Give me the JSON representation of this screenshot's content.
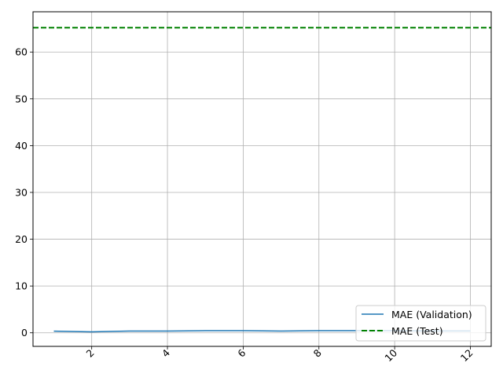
{
  "chart_data": {
    "type": "line",
    "title": "",
    "xlabel": "",
    "ylabel": "",
    "xlim": [
      0.45,
      12.55
    ],
    "ylim": [
      -2.9,
      68.6
    ],
    "x_ticks": [
      2,
      4,
      6,
      8,
      10,
      12
    ],
    "y_ticks": [
      0,
      10,
      20,
      30,
      40,
      50,
      60
    ],
    "x_tick_rotation": 45,
    "grid": true,
    "legend_position": "lower-right",
    "series": [
      {
        "name": "MAE (Validation)",
        "color": "#1f77b4",
        "style": "solid",
        "x": [
          1,
          2,
          3,
          4,
          5,
          6,
          7,
          8,
          9,
          10,
          11,
          12
        ],
        "y": [
          0.35,
          0.2,
          0.38,
          0.38,
          0.45,
          0.45,
          0.38,
          0.45,
          0.45,
          0.45,
          0.4,
          0.4
        ]
      },
      {
        "name": "MAE (Test)",
        "color": "#008000",
        "style": "dashed",
        "hline": 65.2
      }
    ]
  }
}
